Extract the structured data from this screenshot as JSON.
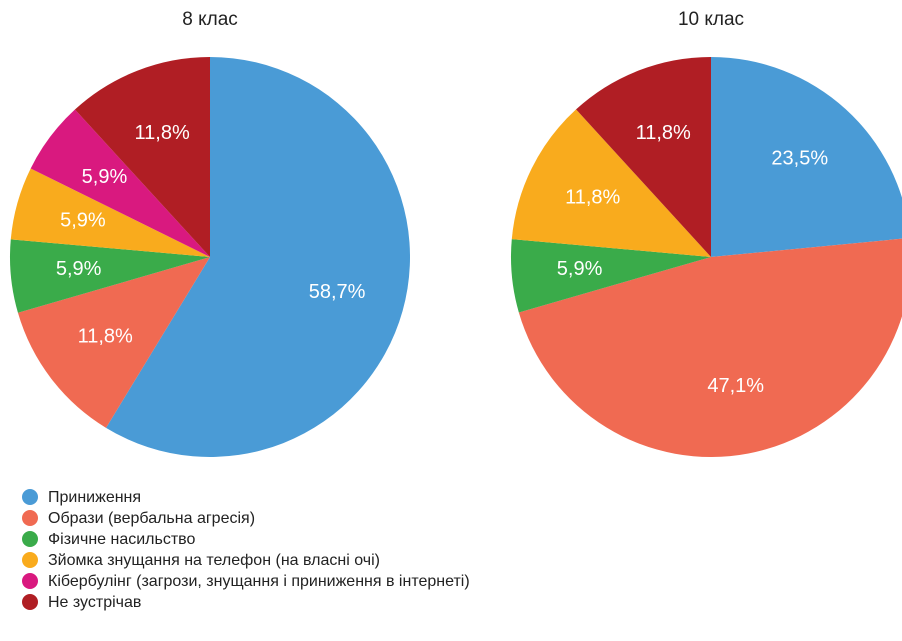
{
  "legend": {
    "categories": [
      "Приниження",
      "Образи (вербальна агресія)",
      "Фізичне насильство",
      "Зйомка знущання на телефон (на власні очі)",
      "Кібербулінг (загрози, знущання і приниження в інтернеті)",
      "Не зустрічав"
    ],
    "colors": [
      "#4a9bd6",
      "#f06a52",
      "#3aab4a",
      "#f9ab1d",
      "#d9197f",
      "#b01e24"
    ]
  },
  "chart_data": [
    {
      "type": "pie",
      "title": "8 клас",
      "values": [
        58.7,
        11.8,
        5.9,
        5.9,
        5.9,
        11.8
      ],
      "value_labels": [
        "58,7%",
        "11,8%",
        "5,9%",
        "5,9%",
        "5,9%",
        "11,8%"
      ]
    },
    {
      "type": "pie",
      "title": "10 клас",
      "values": [
        23.5,
        47.1,
        5.9,
        11.8,
        null,
        11.8
      ],
      "value_labels": [
        "23,5%",
        "47,1%",
        "5,9%",
        "11,8%",
        null,
        "11,8%"
      ]
    }
  ]
}
